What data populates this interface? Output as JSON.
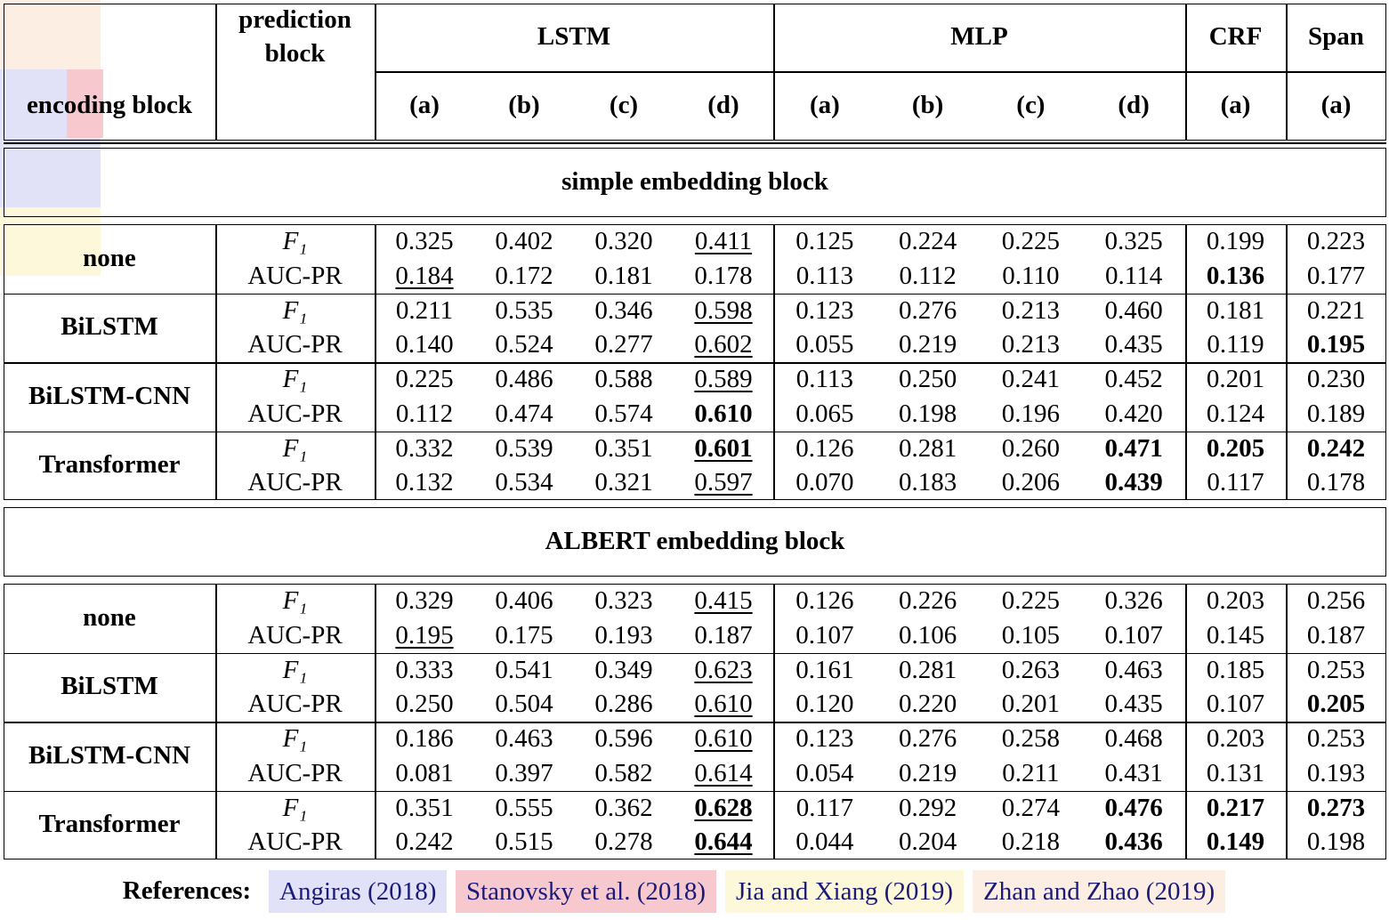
{
  "header": {
    "prediction_block": "prediction block",
    "encoding_block": "encoding block",
    "groups": [
      "LSTM",
      "MLP",
      "CRF",
      "Span"
    ],
    "variants": [
      "(a)",
      "(b)",
      "(c)",
      "(d)",
      "(a)",
      "(b)",
      "(c)",
      "(d)",
      "(a)",
      "(a)"
    ]
  },
  "sections": [
    {
      "title": "simple embedding block",
      "rows": [
        {
          "encoder": "none",
          "metrics": [
            {
              "name": "F₁",
              "values": [
                "0.325",
                "0.402",
                "0.320",
                "0.411",
                "0.125",
                "0.224",
                "0.225",
                "0.325",
                "0.199",
                "0.223"
              ]
            },
            {
              "name": "AUC-PR",
              "values": [
                "0.184",
                "0.172",
                "0.181",
                "0.178",
                "0.113",
                "0.112",
                "0.110",
                "0.114",
                "0.136",
                "0.177"
              ]
            }
          ]
        },
        {
          "encoder": "BiLSTM",
          "metrics": [
            {
              "name": "F₁",
              "values": [
                "0.211",
                "0.535",
                "0.346",
                "0.598",
                "0.123",
                "0.276",
                "0.213",
                "0.460",
                "0.181",
                "0.221"
              ]
            },
            {
              "name": "AUC-PR",
              "values": [
                "0.140",
                "0.524",
                "0.277",
                "0.602",
                "0.055",
                "0.219",
                "0.213",
                "0.435",
                "0.119",
                "0.195"
              ]
            }
          ]
        },
        {
          "encoder": "BiLSTM-CNN",
          "metrics": [
            {
              "name": "F₁",
              "values": [
                "0.225",
                "0.486",
                "0.588",
                "0.589",
                "0.113",
                "0.250",
                "0.241",
                "0.452",
                "0.201",
                "0.230"
              ]
            },
            {
              "name": "AUC-PR",
              "values": [
                "0.112",
                "0.474",
                "0.574",
                "0.610",
                "0.065",
                "0.198",
                "0.196",
                "0.420",
                "0.124",
                "0.189"
              ]
            }
          ]
        },
        {
          "encoder": "Transformer",
          "metrics": [
            {
              "name": "F₁",
              "values": [
                "0.332",
                "0.539",
                "0.351",
                "0.601",
                "0.126",
                "0.281",
                "0.260",
                "0.471",
                "0.205",
                "0.242"
              ]
            },
            {
              "name": "AUC-PR",
              "values": [
                "0.132",
                "0.534",
                "0.321",
                "0.597",
                "0.070",
                "0.183",
                "0.206",
                "0.439",
                "0.117",
                "0.178"
              ]
            }
          ]
        }
      ]
    },
    {
      "title": "ALBERT embedding block",
      "rows": [
        {
          "encoder": "none",
          "metrics": [
            {
              "name": "F₁",
              "values": [
                "0.329",
                "0.406",
                "0.323",
                "0.415",
                "0.126",
                "0.226",
                "0.225",
                "0.326",
                "0.203",
                "0.256"
              ]
            },
            {
              "name": "AUC-PR",
              "values": [
                "0.195",
                "0.175",
                "0.193",
                "0.187",
                "0.107",
                "0.106",
                "0.105",
                "0.107",
                "0.145",
                "0.187"
              ]
            }
          ]
        },
        {
          "encoder": "BiLSTM",
          "metrics": [
            {
              "name": "F₁",
              "values": [
                "0.333",
                "0.541",
                "0.349",
                "0.623",
                "0.161",
                "0.281",
                "0.263",
                "0.463",
                "0.185",
                "0.253"
              ]
            },
            {
              "name": "AUC-PR",
              "values": [
                "0.250",
                "0.504",
                "0.286",
                "0.610",
                "0.120",
                "0.220",
                "0.201",
                "0.435",
                "0.107",
                "0.205"
              ]
            }
          ]
        },
        {
          "encoder": "BiLSTM-CNN",
          "metrics": [
            {
              "name": "F₁",
              "values": [
                "0.186",
                "0.463",
                "0.596",
                "0.610",
                "0.123",
                "0.276",
                "0.258",
                "0.468",
                "0.203",
                "0.253"
              ]
            },
            {
              "name": "AUC-PR",
              "values": [
                "0.081",
                "0.397",
                "0.582",
                "0.614",
                "0.054",
                "0.219",
                "0.211",
                "0.431",
                "0.131",
                "0.193"
              ]
            }
          ]
        },
        {
          "encoder": "Transformer",
          "metrics": [
            {
              "name": "F₁",
              "values": [
                "0.351",
                "0.555",
                "0.362",
                "0.628",
                "0.117",
                "0.292",
                "0.274",
                "0.476",
                "0.217",
                "0.273"
              ]
            },
            {
              "name": "AUC-PR",
              "values": [
                "0.242",
                "0.515",
                "0.278",
                "0.644",
                "0.044",
                "0.204",
                "0.218",
                "0.436",
                "0.149",
                "0.198"
              ]
            }
          ]
        }
      ]
    }
  ],
  "references": {
    "label": "References:",
    "items": [
      "Angiras (2018)",
      "Stanovsky et al. (2018)",
      "Jia and Xiang (2019)",
      "Zhan and Zhao (2019)"
    ]
  }
}
